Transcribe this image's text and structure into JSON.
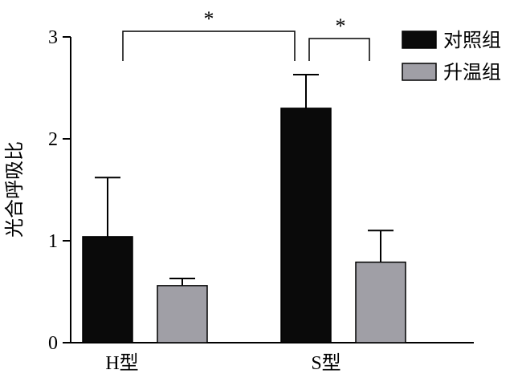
{
  "chart_data": {
    "type": "bar",
    "ylabel": "光合呼吸比",
    "categories": [
      "H型",
      "S型"
    ],
    "ylim": [
      0,
      3
    ],
    "yticks": [
      "0",
      "1",
      "2",
      "3"
    ],
    "series": [
      {
        "name": "对照组",
        "color": "#0a0a0a",
        "values": [
          1.04,
          2.3
        ],
        "errors": [
          0.58,
          0.33
        ]
      },
      {
        "name": "升温组",
        "color": "#a09fa6",
        "values": [
          0.56,
          0.79
        ],
        "errors": [
          0.07,
          0.31
        ]
      }
    ],
    "significance": [
      {
        "label": "*",
        "from": [
          0,
          0
        ],
        "to": [
          1,
          0
        ]
      },
      {
        "label": "*",
        "from": [
          1,
          0
        ],
        "to": [
          1,
          1
        ]
      }
    ],
    "legend_position": "top-right",
    "grid": false
  }
}
